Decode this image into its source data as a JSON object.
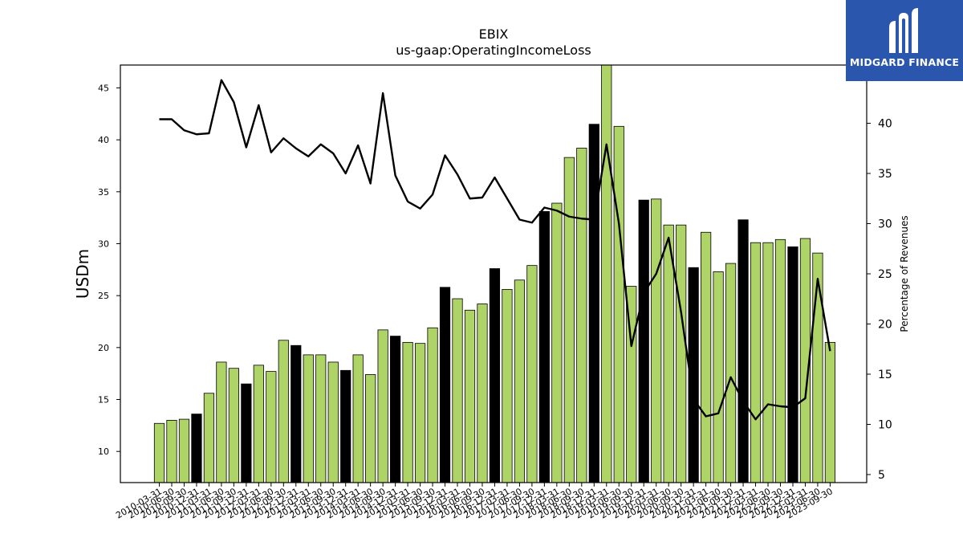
{
  "logo": {
    "text": "MIDGARD FINANCE",
    "color": "#2a56ad"
  },
  "chart_data": {
    "type": "bar",
    "title": "EBIX",
    "subtitle": "us-gaap:OperatingIncomeLoss",
    "ylabel": "USDm",
    "y2label": "Percentage of Revenues",
    "ylim": [
      7,
      47.2
    ],
    "y2lim": [
      4.2,
      45.8
    ],
    "yticks": [
      10,
      15,
      20,
      25,
      30,
      35,
      40,
      45
    ],
    "y2ticks": [
      5,
      10,
      15,
      20,
      25,
      30,
      35,
      40
    ],
    "bar_color": "#aed468",
    "highlight_color": "#000000",
    "line_color": "#000000",
    "categories": [
      "2010-03-31",
      "2010-06-30",
      "2010-09-30",
      "2010-12-31",
      "2011-03-31",
      "2011-06-30",
      "2011-09-30",
      "2011-12-31",
      "2012-03-31",
      "2012-06-30",
      "2012-09-30",
      "2012-12-31",
      "2013-03-31",
      "2013-06-30",
      "2013-09-30",
      "2013-12-31",
      "2014-03-31",
      "2014-06-30",
      "2014-09-30",
      "2014-12-31",
      "2015-03-31",
      "2015-06-30",
      "2015-09-30",
      "2015-12-31",
      "2016-03-31",
      "2016-06-30",
      "2016-09-30",
      "2016-12-31",
      "2017-03-31",
      "2017-06-30",
      "2017-09-30",
      "2017-12-31",
      "2018-03-31",
      "2018-06-30",
      "2018-09-30",
      "2018-12-31",
      "2019-03-31",
      "2019-06-30",
      "2019-09-30",
      "2019-12-31",
      "2020-03-31",
      "2020-06-30",
      "2020-09-30",
      "2020-12-31",
      "2021-03-31",
      "2021-06-30",
      "2021-09-30",
      "2021-12-31",
      "2022-03-31",
      "2022-06-30",
      "2022-09-30",
      "2022-12-31",
      "2023-03-31",
      "2023-06-30",
      "2023-09-30"
    ],
    "tick_labels": [
      "2010-03-31",
      "2010-06-30",
      "2010-09-30",
      "2010-12-31",
      "2011-03-31",
      "2011-06-30",
      "2011-09-30",
      "2011-12-31",
      "2012-03-31",
      "2012-06-30",
      "2012-09-30",
      "2012-12-31",
      "2013-03-31",
      "2013-06-30",
      "2013-09-30",
      "2013-12-31",
      "2014-03-31",
      "2014-06-30",
      "2014-09-30",
      "2014-12-31",
      "2015-03-31",
      "2015-06-30",
      "2015-09-30",
      "2015-12-31",
      "2016-03-31",
      "2016-06-30",
      "2016-09-30",
      "2016-12-31",
      "2017-03-31",
      "2017-06-30",
      "2017-09-30",
      "2017-12-31",
      "2018-03-31",
      "2018-06-30",
      "2018-09-30",
      "2018-12-31",
      "2019-03-31",
      "2019-06-30",
      "2019-09-30",
      "2019-12-31",
      "2020-03-31",
      "2020-06-30",
      "2020-09-30",
      "2020-12-31",
      "2021-03-31",
      "2021-06-30",
      "2021-09-30",
      "2021-12-31",
      "2022-03-31",
      "2022-06-30",
      "2022-09-30",
      "2022-12-31",
      "2023-03-31",
      "2023-06-30",
      "2023-09-30"
    ],
    "values": [
      12.7,
      13.0,
      13.1,
      13.6,
      15.6,
      18.6,
      18.0,
      16.5,
      18.3,
      17.7,
      20.7,
      20.2,
      19.3,
      19.3,
      18.6,
      17.8,
      19.3,
      17.4,
      21.7,
      21.1,
      20.5,
      20.4,
      21.9,
      25.8,
      24.7,
      23.6,
      24.2,
      27.6,
      25.6,
      26.5,
      27.9,
      33.1,
      33.9,
      38.3,
      39.2,
      41.5,
      47.4,
      41.3,
      25.9,
      34.2,
      34.3,
      31.8,
      31.8,
      27.7,
      31.1,
      27.3,
      28.1,
      32.3,
      30.1,
      30.1,
      30.4,
      29.7,
      30.5,
      29.1,
      20.5
    ],
    "highlighted": [
      3,
      7,
      11,
      15,
      19,
      23,
      27,
      31,
      35,
      39,
      43,
      47,
      51
    ],
    "series": [
      {
        "name": "",
        "axis": "right",
        "values": [
          40.4,
          40.4,
          39.3,
          38.9,
          39.0,
          44.3,
          42.1,
          37.6,
          41.8,
          37.1,
          38.5,
          37.5,
          36.7,
          37.9,
          37.0,
          35.0,
          37.8,
          34.0,
          43.0,
          34.8,
          32.2,
          31.5,
          32.9,
          36.8,
          34.9,
          32.5,
          32.6,
          34.6,
          32.5,
          30.4,
          30.1,
          31.6,
          31.3,
          30.7,
          30.5,
          30.4,
          37.9,
          30.0,
          17.8,
          23.1,
          25.0,
          28.6,
          21.2,
          12.5,
          10.8,
          11.1,
          14.7,
          12.3,
          10.5,
          12.0,
          11.8,
          11.7,
          12.6,
          24.5,
          17.3
        ]
      }
    ]
  }
}
